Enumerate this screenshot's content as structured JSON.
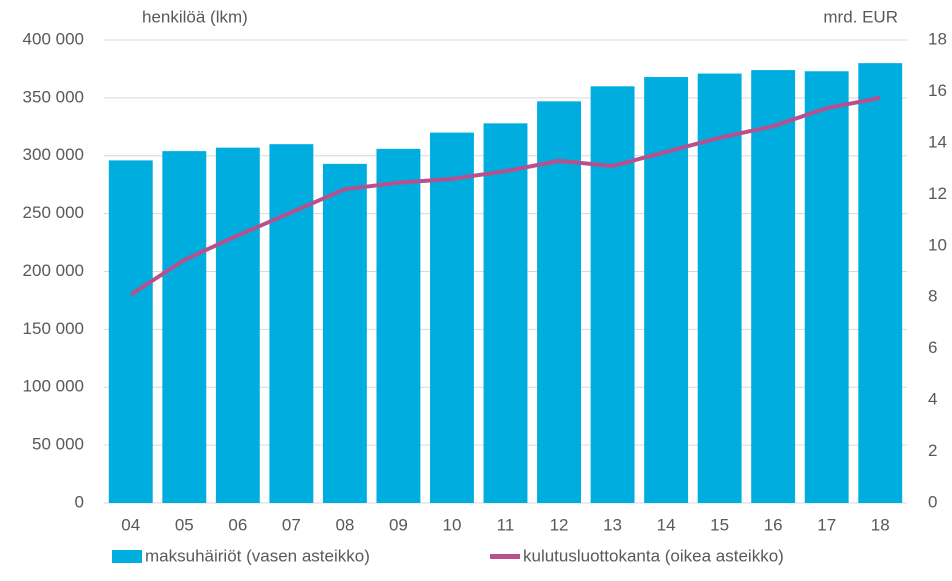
{
  "chart_data": {
    "type": "bar_line",
    "y_label": "henkilöä (lkm)",
    "y2_label": "mrd. EUR",
    "categories": [
      "04",
      "05",
      "06",
      "07",
      "08",
      "09",
      "10",
      "11",
      "12",
      "13",
      "14",
      "15",
      "16",
      "17",
      "18"
    ],
    "series": [
      {
        "name": "maksuhäiriöt (vasen asteikko)",
        "type": "bar",
        "color": "#00addf",
        "values": [
          296000,
          304000,
          307000,
          310000,
          293000,
          306000,
          320000,
          328000,
          347000,
          360000,
          368000,
          371000,
          374000,
          373000,
          380000
        ]
      },
      {
        "name": "kulutusluottokanta (oikea asteikko)",
        "type": "line",
        "axis": "y2",
        "color": "#b9508e",
        "values": [
          8.1,
          9.45,
          10.4,
          11.3,
          12.2,
          12.45,
          12.6,
          12.9,
          13.3,
          13.1,
          13.65,
          14.2,
          14.65,
          15.35,
          15.75
        ]
      }
    ],
    "ylim": [
      0,
      400000
    ],
    "yticks": [
      {
        "value": 0,
        "label": "0"
      },
      {
        "value": 50000,
        "label": "50 000"
      },
      {
        "value": 100000,
        "label": "100 000"
      },
      {
        "value": 150000,
        "label": "150 000"
      },
      {
        "value": 200000,
        "label": "200 000"
      },
      {
        "value": 250000,
        "label": "250 000"
      },
      {
        "value": 300000,
        "label": "300 000"
      },
      {
        "value": 350000,
        "label": "350 000"
      },
      {
        "value": 400000,
        "label": "400 000"
      }
    ],
    "y2lim": [
      0,
      18
    ],
    "y2ticks": [
      0,
      2,
      4,
      6,
      8,
      10,
      12,
      14,
      16,
      18
    ],
    "grid": true
  }
}
